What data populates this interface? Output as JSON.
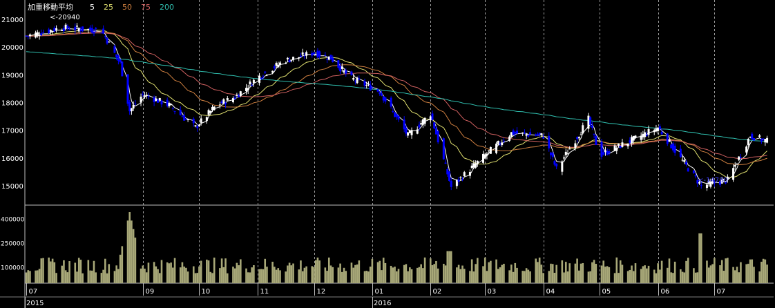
{
  "legend": {
    "title": "加重移動平均",
    "periods": [
      {
        "label": "5",
        "color": "#ffffff"
      },
      {
        "label": "25",
        "color": "#e0e070"
      },
      {
        "label": "50",
        "color": "#d08040"
      },
      {
        "label": "75",
        "color": "#d06060"
      },
      {
        "label": "200",
        "color": "#30c0b0"
      }
    ]
  },
  "annotations": {
    "high_label": "<-20940",
    "low_label": "<-14780"
  },
  "colors": {
    "background": "#000000",
    "grid": "#a0a0a0",
    "up_candle": "#ffffff",
    "down_candle": "#0000ff",
    "volume": "#a8a878",
    "axis_text": "#ffffff"
  },
  "chart_data": [
    {
      "type": "candlestick",
      "title": "",
      "y_ticks": [
        21000,
        20000,
        19000,
        18000,
        17000,
        16000,
        15000
      ],
      "ylim": [
        14300,
        21600
      ],
      "x_ticks": [
        "07",
        "09",
        "10",
        "11",
        "12",
        "01",
        "02",
        "03",
        "04",
        "05",
        "06",
        "07"
      ],
      "year_labels": [
        "2015",
        "2016"
      ],
      "x_range": [
        "2015-07",
        "2016-07"
      ],
      "price_anchors": [
        [
          "2015-07-01",
          20400
        ],
        [
          "2015-07-20",
          20700
        ],
        [
          "2015-08-10",
          20600
        ],
        [
          "2015-08-20",
          19400
        ],
        [
          "2015-08-25",
          17700
        ],
        [
          "2015-09-01",
          18300
        ],
        [
          "2015-09-15",
          17900
        ],
        [
          "2015-09-29",
          17100
        ],
        [
          "2015-10-10",
          17900
        ],
        [
          "2015-10-20",
          18200
        ],
        [
          "2015-11-01",
          18900
        ],
        [
          "2015-11-15",
          19500
        ],
        [
          "2015-12-01",
          19800
        ],
        [
          "2015-12-10",
          19600
        ],
        [
          "2015-12-20",
          18900
        ],
        [
          "2016-01-05",
          18400
        ],
        [
          "2016-01-20",
          16800
        ],
        [
          "2016-02-01",
          17600
        ],
        [
          "2016-02-12",
          14950
        ],
        [
          "2016-03-01",
          16100
        ],
        [
          "2016-03-15",
          16900
        ],
        [
          "2016-04-01",
          16800
        ],
        [
          "2016-04-08",
          15600
        ],
        [
          "2016-04-25",
          17400
        ],
        [
          "2016-05-01",
          16100
        ],
        [
          "2016-05-20",
          16700
        ],
        [
          "2016-06-01",
          17100
        ],
        [
          "2016-06-15",
          15800
        ],
        [
          "2016-06-24",
          15000
        ],
        [
          "2016-07-08",
          15200
        ],
        [
          "2016-07-20",
          16800
        ],
        [
          "2016-07-29",
          16600
        ]
      ],
      "high": 20940,
      "low": 14780,
      "moving_averages": [
        "5",
        "25",
        "50",
        "75",
        "200"
      ]
    },
    {
      "type": "bar",
      "title": "",
      "name": "volume",
      "y_ticks": [
        400000,
        250000,
        100000
      ],
      "ylim": [
        0,
        470000
      ],
      "peak": 440000,
      "typical": 110000
    }
  ]
}
